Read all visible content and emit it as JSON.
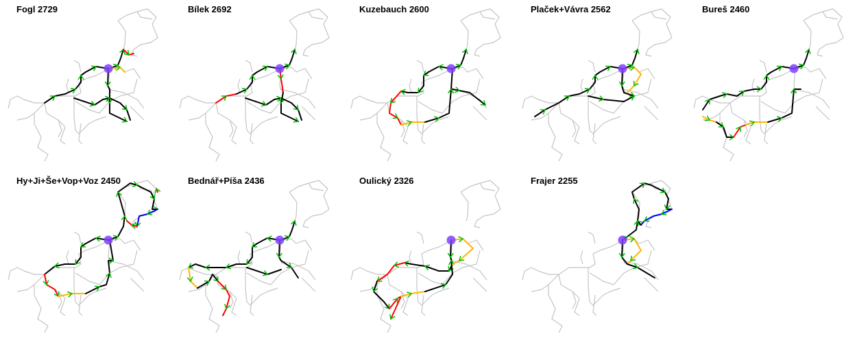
{
  "panels": [
    {
      "title": "Fogl 2729"
    },
    {
      "title": "Bílek 2692"
    },
    {
      "title": "Kuzebauch 2600"
    },
    {
      "title": "Plaček+Vávra 2562"
    },
    {
      "title": "Bureš 2460"
    },
    {
      "title": "Hy+Ji+Še+Vop+Voz 2450"
    },
    {
      "title": "Bednář+Píša 2436"
    },
    {
      "title": "Oulický 2326"
    },
    {
      "title": "Frajer 2255"
    }
  ],
  "colors": {
    "network": "#c4c4c4",
    "route_main": "#000000",
    "route_red": "#ff0000",
    "route_orange": "#ffb400",
    "route_blue": "#0000ff",
    "direction_marks": "#00c000",
    "start_marker": "#7f3fff"
  },
  "icons": {
    "start": "start-circle-marker",
    "direction": "green-chevron-marks"
  }
}
